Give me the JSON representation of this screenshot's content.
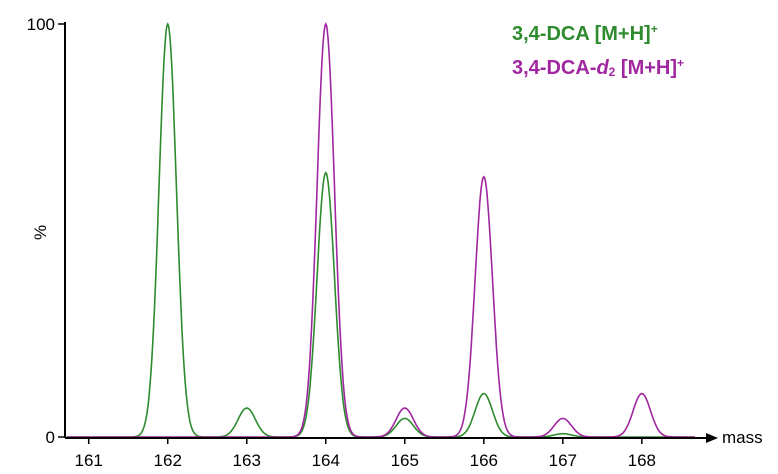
{
  "chart_data": {
    "type": "line",
    "xlabel": "mass",
    "ylabel": "%",
    "xlim": [
      160.7,
      168.85
    ],
    "ylim": [
      0,
      100
    ],
    "x_ticks": [
      "161",
      "162",
      "163",
      "164",
      "165",
      "166",
      "167",
      "168"
    ],
    "y_ticks": [
      "0",
      "100"
    ],
    "grid": false,
    "legend_position": "top-right",
    "series": [
      {
        "name": "3,4-DCA [M+H]+",
        "color": "#2e8b2e",
        "peaks": [
          {
            "mass": 162.0,
            "intensity": 100
          },
          {
            "mass": 163.0,
            "intensity": 7
          },
          {
            "mass": 164.0,
            "intensity": 64
          },
          {
            "mass": 165.0,
            "intensity": 4.5
          },
          {
            "mass": 166.0,
            "intensity": 10.5
          },
          {
            "mass": 167.0,
            "intensity": 0.8
          }
        ]
      },
      {
        "name": "3,4-DCA-d2 [M+H]+",
        "color": "#a0279f",
        "peaks": [
          {
            "mass": 164.0,
            "intensity": 100
          },
          {
            "mass": 165.0,
            "intensity": 7
          },
          {
            "mass": 166.0,
            "intensity": 63
          },
          {
            "mass": 167.0,
            "intensity": 4.5
          },
          {
            "mass": 168.0,
            "intensity": 10.5
          }
        ]
      }
    ],
    "legend": {
      "green_main": "3,4-DCA [M+H]",
      "green_sup": "+",
      "purple_pre": "3,4-DCA-",
      "purple_italic": "d",
      "purple_sub": "2",
      "purple_post": " [M+H]",
      "purple_sup": "+"
    }
  }
}
